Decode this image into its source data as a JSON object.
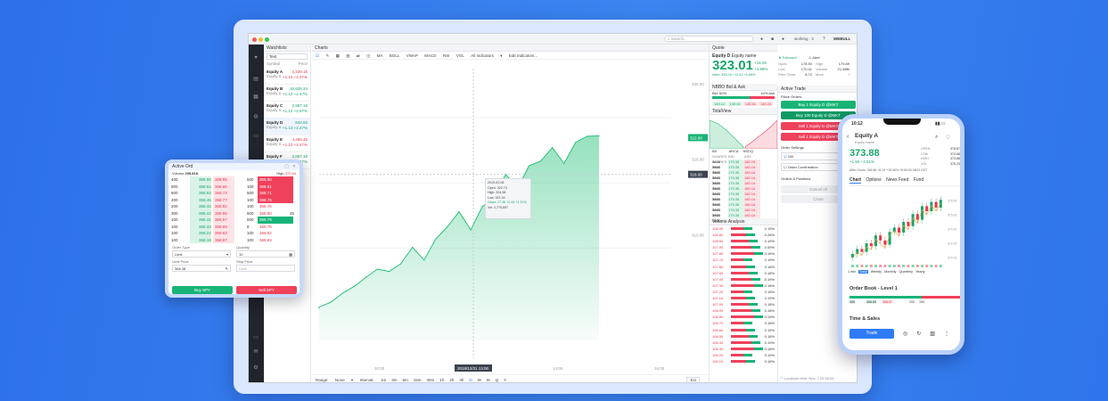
{
  "colors": {
    "background": "#3280ef",
    "up": "#18a66a",
    "down": "#e8364d",
    "accent": "#2f7bf5",
    "dark_rail": "#20242c"
  },
  "topbar": {
    "search_placeholder": "Search...",
    "account": "working · 2",
    "brand": "WEBULL"
  },
  "rail": {
    "icons": [
      "heart-icon",
      "chart-icon",
      "news-icon",
      "globe-icon",
      "card-icon",
      "screen-icon",
      "settings-icon"
    ]
  },
  "watchlist": {
    "title": "Watchlists",
    "filter": "Test",
    "col_symbol": "Symbol",
    "col_price": "Price",
    "items": [
      {
        "name": "Equity A",
        "sub": "Equity n...",
        "price": "2,339.16",
        "change": "+1.12 +2.47%",
        "dir": "down"
      },
      {
        "name": "Equity B",
        "sub": "Equity n...",
        "price": "16,626.34",
        "change": "+1.12 +2.47%",
        "dir": "up"
      },
      {
        "name": "Equity C",
        "sub": "Equity n...",
        "price": "2,987.18",
        "change": "+1.12 +2.97%",
        "dir": "up"
      },
      {
        "name": "Equity D",
        "sub": "Equity n...",
        "price": "842.92",
        "change": "+1.12 +2.47%",
        "dir": "up"
      },
      {
        "name": "Equity E",
        "sub": "Equity n...",
        "price": "4,455.45",
        "change": "+1.12 +2.47%",
        "dir": "down"
      },
      {
        "name": "Equity F",
        "sub": "Equity n...",
        "price": "2,867.18",
        "change": "+1.12 +2.47%",
        "dir": "up"
      }
    ]
  },
  "charts": {
    "title": "Charts",
    "indicators": [
      "MA",
      "BOLL",
      "VWAP",
      "MACD",
      "RSI",
      "VOL"
    ],
    "all_indicators": "All Indicators",
    "edit_indicators": "Edit Indicators...",
    "price_axis": [
      "330.00",
      "320.00",
      "310.00"
    ],
    "last_price_tag": "322.86",
    "cross_price_tag": "318.00",
    "x_ticks": [
      "10:00",
      "12:00",
      "14:00",
      "16:00"
    ],
    "crosshair_time": "2018/12/31 13:00",
    "tooltip": {
      "date": "2019-02-06",
      "open": "Open: 322.74",
      "high": "High: 324.56",
      "low": "Low: 321.34",
      "close": "Close: 17.46 +2.24 +1.31%",
      "vol": "Vol: 2,775,897"
    },
    "range_label": "Range:",
    "range_value": "None",
    "interval_label": "Interval:",
    "intervals": [
      "1m",
      "3m",
      "5m",
      "15m",
      "30m",
      "1h",
      "2h",
      "4h",
      "D",
      "W",
      "M",
      "Q",
      "Y"
    ],
    "active_interval": "D",
    "ext_label": "Ext"
  },
  "quote": {
    "title": "Quote",
    "symbol": "Equity D",
    "name": "Equity name",
    "price": "323.01",
    "change": "+15.26",
    "change_pct": "+4.95%",
    "after": "After: 335.04 +12.43 +0.65%",
    "stats": [
      {
        "k": "Open",
        "v": "178.90"
      },
      {
        "k": "High",
        "v": "179.89"
      },
      {
        "k": "Low",
        "v": "170.41"
      },
      {
        "k": "Volume",
        "v": "21.58M"
      },
      {
        "k": "Prev Close",
        "v": "8.72"
      },
      {
        "k": "More",
        "v": "›"
      }
    ],
    "followed": "Followed",
    "alert": "Alert"
  },
  "nbbo": {
    "title": "NBBO Bid & Ask",
    "bid": "Bid: 60%",
    "ask": "40% Ask",
    "bid_prices": [
      "149.12",
      "149.42"
    ],
    "ask_prices": [
      "140.61",
      "140.24"
    ]
  },
  "totalview": {
    "title": "TotalView",
    "tabs": [
      "BX",
      "ARCA",
      "NSDQ"
    ],
    "header": [
      "SHARES",
      "BID",
      "ASK",
      "SHARES"
    ],
    "rows": [
      [
        "5645",
        "179.35",
        "180.16",
        "7800"
      ],
      [
        "5645",
        "179.35",
        "180.16",
        "7800"
      ],
      [
        "5645",
        "179.35",
        "180.16",
        "7800"
      ],
      [
        "5645",
        "179.35",
        "180.16",
        "7800"
      ],
      [
        "5645",
        "179.35",
        "180.16",
        "7800"
      ],
      [
        "5645",
        "179.35",
        "180.16",
        "7800"
      ],
      [
        "5645",
        "179.35",
        "180.16",
        "7800"
      ],
      [
        "5645",
        "179.35",
        "180.16",
        "7800"
      ],
      [
        "5645",
        "179.35",
        "180.16",
        "7800"
      ],
      [
        "5645",
        "179.35",
        "180.16",
        "7800"
      ],
      [
        "5645",
        "179.35",
        "180.16",
        "7800"
      ]
    ]
  },
  "volume_analysis": {
    "title": "Volume Analysis",
    "rows": [
      [
        "108.90",
        "0.19%"
      ],
      [
        "108.80",
        "0.28%"
      ],
      [
        "108.60",
        "0.19%"
      ],
      [
        "107.90",
        "0.09%"
      ],
      [
        "107.80",
        "0.16%"
      ],
      [
        "107.70",
        "0.19%"
      ],
      [
        "107.60",
        "0.18%"
      ],
      [
        "107.50",
        "0.18%"
      ],
      [
        "107.40",
        "0.19%"
      ],
      [
        "107.30",
        "0.18%"
      ],
      [
        "107.20",
        "0.18%"
      ],
      [
        "107.10",
        "0.19%"
      ],
      [
        "107.00",
        "0.18%"
      ],
      [
        "106.90",
        "0.18%"
      ],
      [
        "106.80",
        "0.19%"
      ],
      [
        "106.70",
        "0.18%"
      ],
      [
        "106.60",
        "0.19%"
      ],
      [
        "106.50",
        "0.18%"
      ],
      [
        "106.40",
        "0.19%"
      ],
      [
        "106.30",
        "0.18%"
      ],
      [
        "106.20",
        "0.19%"
      ],
      [
        "106.10",
        "0.18%"
      ]
    ]
  },
  "active_trade": {
    "title": "Active Trade",
    "place_orders": "Place Orders",
    "buy1": "Buy 1 Equity D @MKT",
    "buy100": "Buy 100 Equity D @MKT",
    "sell1": "Sell 1 Equity D @MKT",
    "sell100": "Sell 1 Equity D @MKT",
    "order_settings": "Order Settings",
    "qty": "100",
    "confirm": "Order Confirmation",
    "orders_positions": "Orders & Positions",
    "cancel_all": "Cancel All",
    "close": "Close"
  },
  "status": {
    "local_time": "Localized time: Nov. 7 10:36:03"
  },
  "active_order": {
    "title": "Active Ord",
    "volume_label": "Volume",
    "volume": "209.81K",
    "high_label": "High",
    "high": "370.84",
    "rows": [
      [
        "400",
        "368.55",
        "368.65",
        "500"
      ],
      [
        "900",
        "368.54",
        "368.66",
        "100"
      ],
      [
        "500",
        "368.53",
        "368.72",
        "500"
      ],
      [
        "400",
        "368.46",
        "368.77",
        "100"
      ],
      [
        "200",
        "368.43",
        "368.82",
        "100"
      ],
      [
        "300",
        "368.42",
        "368.86",
        "500"
      ],
      [
        "100",
        "368.41",
        "368.87",
        "500"
      ],
      [
        "100",
        "368.33",
        "368.89",
        "8"
      ],
      [
        "100",
        "368.22",
        "368.83",
        "100"
      ],
      [
        "100",
        "368.19",
        "368.97",
        "100"
      ]
    ],
    "bid_tags": [
      "500",
      "400",
      "300",
      "400",
      "200",
      "100",
      "200",
      "200",
      "300",
      "300"
    ],
    "ask_tags": [
      "368.80",
      "368.81",
      "368.71",
      "368.75",
      "368.76",
      "368.80",
      "368.79",
      "368.79",
      "368.82",
      "368.83"
    ],
    "ask_pcts": [
      "",
      "",
      "",
      "",
      "",
      "25",
      "",
      "",
      "",
      ""
    ],
    "order_type_label": "Order Type",
    "order_type": "Limit",
    "quantity_label": "Quantity",
    "quantity": "10",
    "limit_label": "Limit Price",
    "limit": "368.38",
    "stop_label": "Stop Price",
    "stop": "Limit",
    "buy": "Buy SPY",
    "sell": "Sell SPY"
  },
  "phone": {
    "time": "10:12",
    "symbol": "Equity A",
    "sub": "Equity name",
    "price": "373.88",
    "change": "+1.55 +1.51%",
    "after": "After Hours: 365.56 +8.10 +15.06% 19:59:30 06/21 EDT",
    "mini": [
      [
        "OPEN",
        "378.87"
      ],
      [
        "LOW",
        "373.88"
      ],
      [
        "HIGH",
        "373.88"
      ],
      [
        "VOL",
        "375.23"
      ]
    ],
    "tabs": [
      "Chart",
      "Options",
      "News Feed",
      "Fund"
    ],
    "periods": [
      "1 min",
      "Daily",
      "Weekly",
      "Monthly",
      "Quarterly",
      "Yearly"
    ],
    "active_period": "Daily",
    "order_book_title": "Order Book - Level 1",
    "ob": [
      "368",
      "368.65",
      "368.97",
      "100",
      "100"
    ],
    "time_sales": "Time & Sales",
    "trade_btn": "Trade",
    "price_axis": [
      "378.00",
      "376.00",
      "374.00",
      "372.00",
      "370.00"
    ]
  },
  "chart_data": [
    {
      "type": "area",
      "title": "",
      "xlabel": "",
      "ylabel": "",
      "x": [
        "10:00",
        "",
        "",
        "",
        "",
        "",
        "",
        "",
        "12:00",
        "",
        "",
        "",
        "",
        "",
        "",
        "",
        "14:00",
        "",
        "",
        "",
        "",
        "",
        "",
        "",
        "16:00"
      ],
      "values": [
        300.2,
        301.4,
        302.0,
        303.5,
        304.1,
        305.8,
        304.9,
        306.5,
        308.1,
        307.0,
        309.2,
        311.4,
        312.8,
        311.0,
        313.5,
        315.2,
        317.8,
        316.4,
        318.9,
        320.1,
        321.3,
        319.8,
        322.0,
        323.4,
        322.86
      ],
      "ylim": [
        296,
        332
      ],
      "grid": true,
      "legend": "none"
    },
    {
      "type": "candlestick",
      "title": "",
      "series": [
        {
          "name": "",
          "values": [
            370.5,
            371.2,
            370.8,
            372.0,
            371.6,
            373.1,
            372.4,
            371.8,
            373.6,
            374.2,
            373.5,
            375.0,
            374.4,
            376.1,
            375.3,
            377.2,
            376.5,
            377.8,
            377.0,
            378.1
          ]
        }
      ],
      "ylim": [
        369,
        379
      ],
      "grid": true,
      "legend": "none"
    }
  ]
}
